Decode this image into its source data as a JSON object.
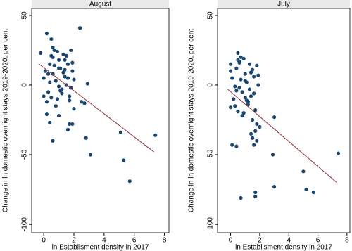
{
  "chart_data": [
    {
      "type": "scatter",
      "title": "August",
      "xlabel": "ln Establisment density in 2017",
      "ylabel": "Change in ln domestic overnight stays 2019-2020, per cent",
      "x": [
        -0.2,
        0.2,
        0.5,
        2.4,
        2.9,
        3.1,
        5.1,
        5.3,
        5.7,
        7.4,
        2.8,
        0.6,
        1.7,
        1.9,
        1.6,
        0.4,
        1.0,
        0.2,
        2.5,
        2.7,
        2.0,
        0.0,
        0.1,
        0.3,
        0.4,
        0.5,
        0.6,
        0.7,
        0.8,
        0.9,
        1.0,
        1.1,
        1.2,
        1.3,
        1.4,
        1.5,
        1.6,
        1.7,
        1.8,
        1.9,
        2.0,
        0.2,
        0.4,
        0.6,
        0.8,
        1.0,
        1.2,
        1.4,
        1.6,
        1.8,
        0.3,
        0.5,
        0.7,
        0.9,
        1.1,
        1.3,
        1.5,
        1.7,
        1.9,
        0.0,
        0.6,
        1.0,
        1.4
      ],
      "values": [
        23,
        37,
        33,
        41,
        1,
        -50,
        -34,
        -54,
        -69,
        -36,
        -38,
        -40,
        -28,
        -28,
        -32,
        -27,
        -22,
        -21,
        -12,
        -13,
        -17,
        5,
        10,
        -5,
        15,
        21,
        8,
        25,
        3,
        -10,
        18,
        12,
        -3,
        22,
        6,
        0,
        15,
        -8,
        25,
        10,
        4,
        -12,
        2,
        20,
        -15,
        12,
        -6,
        18,
        5,
        -2,
        8,
        -9,
        14,
        24,
        -4,
        9,
        21,
        -11,
        16,
        -8,
        27,
        -1,
        11
      ],
      "color": "#1a476f",
      "fit_line": {
        "x": [
          -0.3,
          7.3
        ],
        "y": [
          15,
          -48
        ],
        "color": "#90353b"
      },
      "xlim": [
        -0.8,
        8.3
      ],
      "ylim": [
        -106,
        55
      ],
      "xticks": [
        0,
        2,
        4,
        6,
        8
      ],
      "yticks": [
        -100,
        -50,
        0,
        50
      ]
    },
    {
      "type": "scatter",
      "title": "July",
      "xlabel": "ln Establisment density in 2017",
      "ylabel": "Change in ln domestic overnight stays 2019-2020, per cent",
      "x": [
        0.0,
        0.5,
        0.1,
        0.4,
        0.7,
        1.7,
        1.7,
        3.0,
        5.0,
        5.2,
        5.7,
        7.4,
        3.0,
        2.9,
        1.6,
        1.5,
        1.8,
        0.0,
        0.1,
        0.3,
        0.4,
        0.5,
        0.6,
        0.7,
        0.8,
        0.9,
        1.0,
        1.1,
        1.2,
        1.3,
        1.4,
        1.5,
        1.6,
        1.7,
        1.8,
        1.9,
        2.0,
        0.2,
        0.4,
        0.6,
        0.8,
        1.0,
        1.2,
        1.4,
        1.6,
        1.8,
        0.3,
        0.5,
        0.7,
        0.9,
        1.1,
        1.3,
        1.5,
        1.7,
        1.9,
        0.0,
        0.6,
        1.0,
        1.4
      ],
      "values": [
        15,
        23,
        -43,
        -44,
        -81,
        -77,
        -80,
        -73,
        -62,
        -75,
        -77,
        -49,
        -23,
        -50,
        -43,
        -38,
        -40,
        10,
        5,
        -15,
        12,
        18,
        -2,
        20,
        -5,
        -20,
        8,
        2,
        -12,
        15,
        -8,
        -25,
        6,
        -18,
        14,
        0,
        -30,
        -10,
        -4,
        16,
        -22,
        3,
        -14,
        9,
        -6,
        -28,
        -1,
        -19,
        4,
        19,
        -11,
        -3,
        11,
        -33,
        7,
        -16,
        17,
        -9,
        -35
      ],
      "color": "#1a476f",
      "fit_line": {
        "x": [
          -0.2,
          7.3
        ],
        "y": [
          -3,
          -70
        ],
        "color": "#90353b"
      },
      "xlim": [
        -0.9,
        8.2
      ],
      "ylim": [
        -106,
        55
      ],
      "xticks": [
        0,
        2,
        4,
        6,
        8
      ],
      "yticks": [
        -100,
        -50,
        0,
        50
      ]
    }
  ]
}
